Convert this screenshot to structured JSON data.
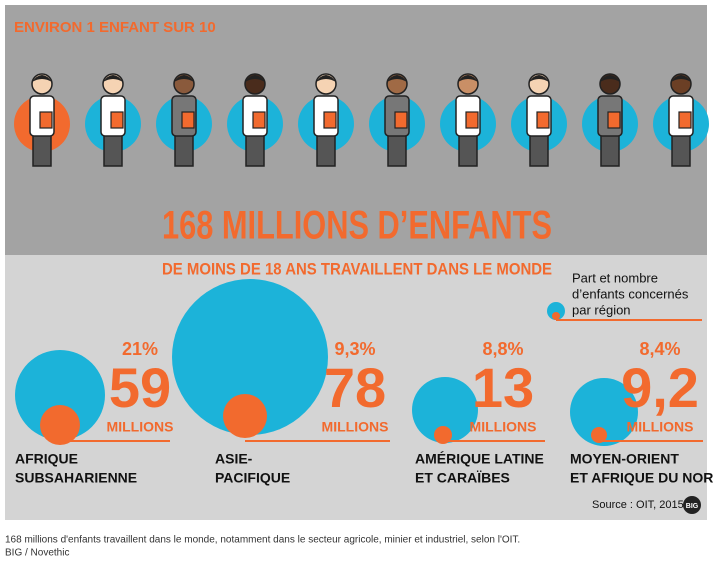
{
  "header": {
    "title": "ENVIRON 1 ENFANT SUR 10"
  },
  "headline": {
    "title": "168 MILLIONS D’ENFANTS",
    "subtitle": "DE MOINS DE 18 ANS TRAVAILLENT DANS LE MONDE"
  },
  "legend": {
    "lines": [
      "Part et nombre",
      "d’enfants concernés",
      "par région"
    ]
  },
  "regions": [
    {
      "share": "21%",
      "count": "59",
      "unit": "MILLIONS",
      "name": [
        "AFRIQUE",
        "SUBSAHARIENNE"
      ]
    },
    {
      "share": "9,3%",
      "count": "78",
      "unit": "MILLIONS",
      "name": [
        "ASIE-",
        "PACIFIQUE"
      ]
    },
    {
      "share": "8,8%",
      "count": "13",
      "unit": "MILLIONS",
      "name": [
        "AMÉRIQUE LATINE",
        "ET CARAÏBES"
      ]
    },
    {
      "share": "8,4%",
      "count": "9,2",
      "unit": "MILLIONS",
      "name": [
        "MOYEN-ORIENT",
        "ET AFRIQUE DU NORD"
      ]
    }
  ],
  "source": "Source : OIT, 2015",
  "logo": "BIG",
  "caption": [
    "168 millions d'enfants travaillent dans le monde, notamment dans le secteur agricole, minier et industriel, selon l'OIT.",
    "BIG / Novethic"
  ]
}
